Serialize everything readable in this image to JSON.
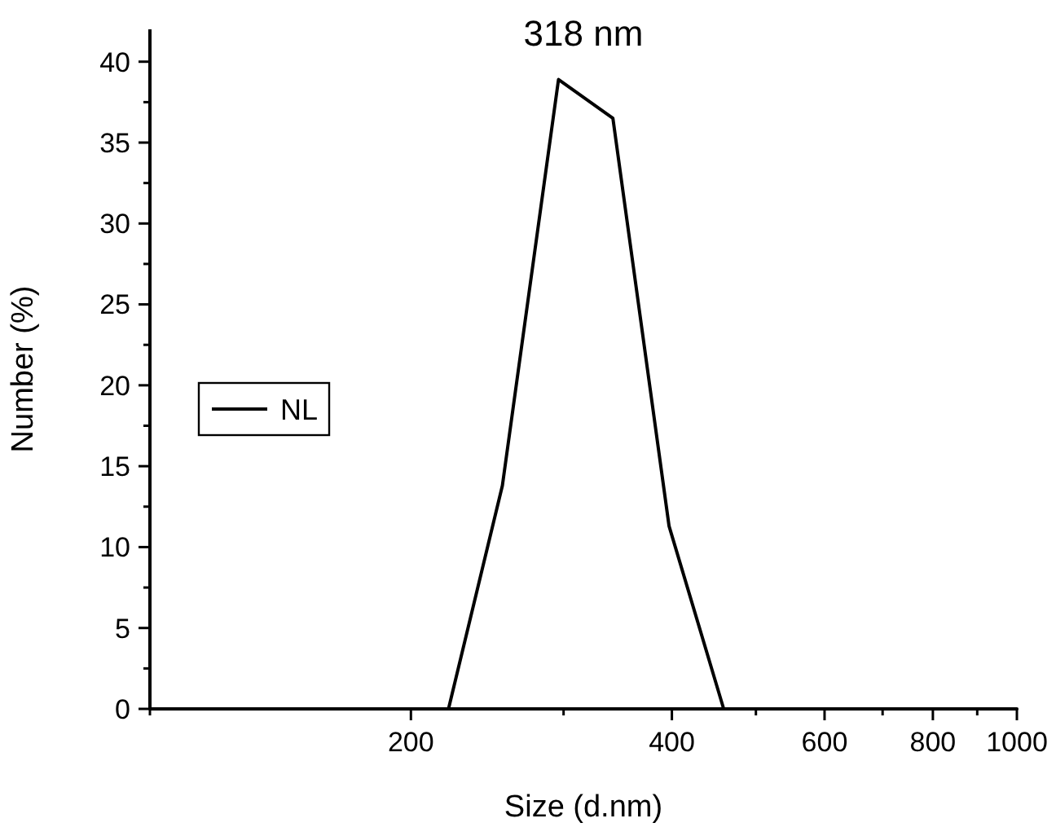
{
  "chart_data": {
    "type": "line",
    "title": "318 nm",
    "xlabel": "Size (d.nm)",
    "ylabel": "Number (%)",
    "log": "x",
    "xlim": [
      100,
      1000
    ],
    "xticks": [
      {
        "value": 100,
        "label": null
      },
      200,
      {
        "value": 300,
        "label": null
      },
      400,
      {
        "value": 500,
        "label": null
      },
      600,
      {
        "value": 700,
        "label": null
      },
      800,
      {
        "value": 900,
        "label": null
      },
      1000
    ],
    "ylim": [
      0,
      42
    ],
    "yticks": [
      0,
      {
        "value": 2.5,
        "label": null
      },
      5,
      {
        "value": 7.5,
        "label": null
      },
      10,
      {
        "value": 12.5,
        "label": null
      },
      15,
      {
        "value": 17.5,
        "label": null
      },
      20,
      {
        "value": 22.5,
        "label": null
      },
      25,
      {
        "value": 27.5,
        "label": null
      },
      30,
      {
        "value": 32.5,
        "label": null
      },
      35,
      {
        "value": 37.5,
        "label": null
      },
      40
    ],
    "legend": "left",
    "marker": "none",
    "line_style": "solid",
    "grid": false,
    "series": [
      {
        "name": "NL",
        "color": "#000000",
        "x": [
          100,
          221,
          255,
          296,
          342,
          397,
          459,
          1000
        ],
        "values": [
          0,
          0,
          13.8,
          38.9,
          36.5,
          11.3,
          0,
          0
        ]
      }
    ]
  }
}
